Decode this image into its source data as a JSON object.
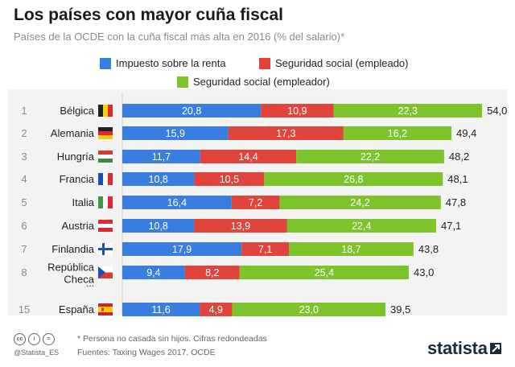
{
  "title": "Los países con mayor cuña fiscal",
  "subtitle": "Países de la OCDE con la cuña fiscal más alta en 2016 (% del salario)*",
  "legend": [
    {
      "label": "Impuesto sobre la renta",
      "color": "#3a7de0"
    },
    {
      "label": "Seguridad social (empleado)",
      "color": "#e0443a"
    },
    {
      "label": "Seguridad social (empleador)",
      "color": "#7dc42c"
    }
  ],
  "chart_data": {
    "type": "bar",
    "orientation": "horizontal",
    "stacked": true,
    "title": "Los países con mayor cuña fiscal",
    "categories": [
      "Bélgica",
      "Alemania",
      "Hungría",
      "Francia",
      "Italia",
      "Austria",
      "Finlandia",
      "República Checa",
      "España"
    ],
    "ranks": [
      "1",
      "2",
      "3",
      "4",
      "5",
      "6",
      "7",
      "8",
      "15"
    ],
    "series": [
      {
        "name": "Impuesto sobre la renta",
        "color": "#3a7de0",
        "values": [
          20.8,
          15.9,
          11.7,
          10.8,
          16.4,
          10.8,
          17.9,
          9.4,
          11.6
        ]
      },
      {
        "name": "Seguridad social (empleado)",
        "color": "#e0443a",
        "values": [
          10.9,
          17.3,
          14.4,
          10.5,
          7.2,
          13.9,
          7.1,
          8.2,
          4.9
        ]
      },
      {
        "name": "Seguridad social (empleador)",
        "color": "#7dc42c",
        "values": [
          22.3,
          16.2,
          22.2,
          26.8,
          24.2,
          22.4,
          18.7,
          25.4,
          23.0
        ]
      }
    ],
    "value_labels": [
      [
        "20,8",
        "15,9",
        "11,7",
        "10,8",
        "16,4",
        "10,8",
        "17,9",
        "9,4",
        "11,6"
      ],
      [
        "10,9",
        "17,3",
        "14,4",
        "10,5",
        "7,2",
        "13,9",
        "7,1",
        "8,2",
        "4,9"
      ],
      [
        "22,3",
        "16,2",
        "22,2",
        "26,8",
        "24,2",
        "22,4",
        "18,7",
        "25,4",
        "23,0"
      ]
    ],
    "totals": [
      "54,0",
      "49,4",
      "48,2",
      "48,1",
      "47,8",
      "47,1",
      "43,8",
      "43,0",
      "39,5"
    ],
    "gap_marker": "...",
    "xlim": [
      0,
      54
    ],
    "flags": [
      "belgium",
      "germany",
      "hungary",
      "france",
      "italy",
      "austria",
      "finland",
      "czech",
      "spain"
    ]
  },
  "footnotes": {
    "note": "* Persona no casada sin hijos. Cifras redondeadas",
    "source": "Fuentes: Taxing Wages 2017, OCDE",
    "handle": "@Statista_ES",
    "logo": "statista"
  }
}
